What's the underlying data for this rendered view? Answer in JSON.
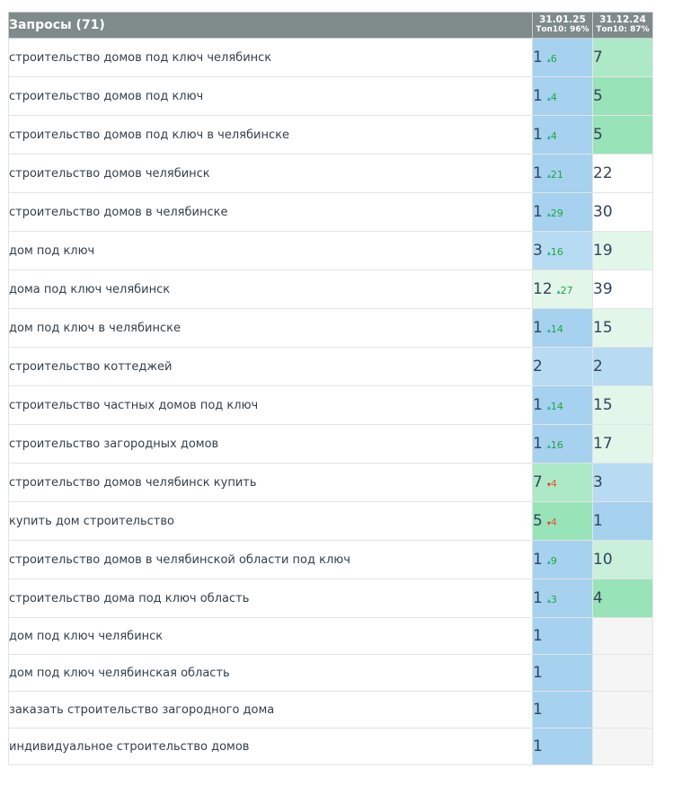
{
  "table": {
    "title": "Запросы (71)",
    "columns": [
      {
        "date": "31.01.25",
        "top10": "Топ10: 96%"
      },
      {
        "date": "31.12.24",
        "top10": "Топ10: 87%"
      }
    ],
    "rows": [
      {
        "query": "строительство домов под ключ челябинск",
        "p1": "1",
        "chg": "6",
        "dir": "up",
        "p2": "7"
      },
      {
        "query": "строительство домов под ключ",
        "p1": "1",
        "chg": "4",
        "dir": "up",
        "p2": "5"
      },
      {
        "query": "строительство домов под ключ в челябинске",
        "p1": "1",
        "chg": "4",
        "dir": "up",
        "p2": "5"
      },
      {
        "query": "строительство домов челябинск",
        "p1": "1",
        "chg": "21",
        "dir": "up",
        "p2": "22"
      },
      {
        "query": "строительство домов в челябинске",
        "p1": "1",
        "chg": "29",
        "dir": "up",
        "p2": "30"
      },
      {
        "query": "дом под ключ",
        "p1": "3",
        "chg": "16",
        "dir": "up",
        "p2": "19"
      },
      {
        "query": "дома под ключ челябинск",
        "p1": "12",
        "chg": "27",
        "dir": "up",
        "p2": "39"
      },
      {
        "query": "дом под ключ в челябинске",
        "p1": "1",
        "chg": "14",
        "dir": "up",
        "p2": "15"
      },
      {
        "query": "строительство коттеджей",
        "p1": "2",
        "chg": "",
        "dir": "",
        "p2": "2"
      },
      {
        "query": "строительство частных домов под ключ",
        "p1": "1",
        "chg": "14",
        "dir": "up",
        "p2": "15"
      },
      {
        "query": "строительство загородных домов",
        "p1": "1",
        "chg": "16",
        "dir": "up",
        "p2": "17"
      },
      {
        "query": "строительство домов челябинск купить",
        "p1": "7",
        "chg": "4",
        "dir": "down",
        "p2": "3"
      },
      {
        "query": "купить дом строительство",
        "p1": "5",
        "chg": "4",
        "dir": "down",
        "p2": "1"
      },
      {
        "query": "строительство домов в челябинской области под ключ",
        "p1": "1",
        "chg": "9",
        "dir": "up",
        "p2": "10"
      },
      {
        "query": "строительство дома под ключ область",
        "p1": "1",
        "chg": "3",
        "dir": "up",
        "p2": "4"
      },
      {
        "query": "дом под ключ челябинск",
        "p1": "1",
        "chg": "",
        "dir": "",
        "p2": ""
      },
      {
        "query": "дом под ключ челябинская область",
        "p1": "1",
        "chg": "",
        "dir": "",
        "p2": ""
      },
      {
        "query": "заказать строительство загородного дома",
        "p1": "1",
        "chg": "",
        "dir": "",
        "p2": ""
      },
      {
        "query": "индивидуальное строительство домов",
        "p1": "1",
        "chg": "",
        "dir": "",
        "p2": ""
      }
    ]
  },
  "icons": {
    "up": "▴",
    "down": "▾"
  },
  "colors": {
    "header": "#7f8b8b",
    "pos_1": "#a6d1ef",
    "pos_2_3": "#b7dbf2",
    "pos_4_5": "#99e3b9",
    "pos_6_9": "#ade9c6",
    "pos_10": "#c9f0db",
    "pos_11_20": "#e2f7ea",
    "pos_over_20": "#ffffff",
    "pos_none": "#f5f5f5",
    "change_up": "#1fa83a",
    "change_down": "#e8553f"
  }
}
